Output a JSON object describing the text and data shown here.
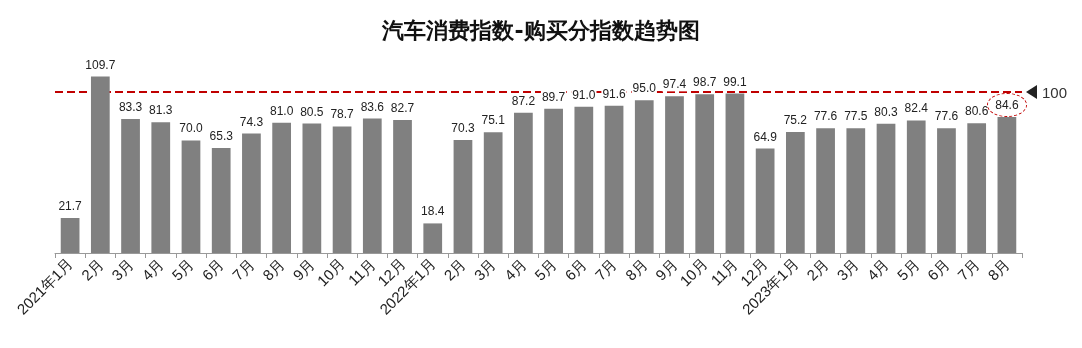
{
  "chart_data": {
    "type": "bar",
    "title": "汽车消费指数-购买分指数趋势图",
    "categories": [
      "2021年1月",
      "2月",
      "3月",
      "4月",
      "5月",
      "6月",
      "7月",
      "8月",
      "9月",
      "10月",
      "11月",
      "12月",
      "2022年1月",
      "2月",
      "3月",
      "4月",
      "5月",
      "6月",
      "7月",
      "8月",
      "9月",
      "10月",
      "11月",
      "12月",
      "2023年1月",
      "2月",
      "3月",
      "4月",
      "5月",
      "6月",
      "7月",
      "8月"
    ],
    "values": [
      21.7,
      109.7,
      83.3,
      81.3,
      70.0,
      65.3,
      74.3,
      81.0,
      80.5,
      78.7,
      83.6,
      82.7,
      18.4,
      70.3,
      75.1,
      87.2,
      89.7,
      91.0,
      91.6,
      95.0,
      97.4,
      98.7,
      99.1,
      64.9,
      75.2,
      77.6,
      77.5,
      80.3,
      82.4,
      77.6,
      80.6,
      84.6
    ],
    "value_labels": [
      "21.7",
      "109.7",
      "83.3",
      "81.3",
      "70.0",
      "65.3",
      "74.3",
      "81.0",
      "80.5",
      "78.7",
      "83.6",
      "82.7",
      "18.4",
      "70.3",
      "75.1",
      "87.2",
      "89.7",
      "91.0",
      "91.6",
      "95.0",
      "97.4",
      "98.7",
      "99.1",
      "64.9",
      "75.2",
      "77.6",
      "77.5",
      "80.3",
      "82.4",
      "77.6",
      "80.6",
      "84.6"
    ],
    "color": "#808080",
    "ref_lines": [
      {
        "axis": "y",
        "value": 100,
        "label": "100",
        "color": "#c00000",
        "line_style": "dashed"
      }
    ],
    "tick_labels": "x",
    "grid": false
  }
}
